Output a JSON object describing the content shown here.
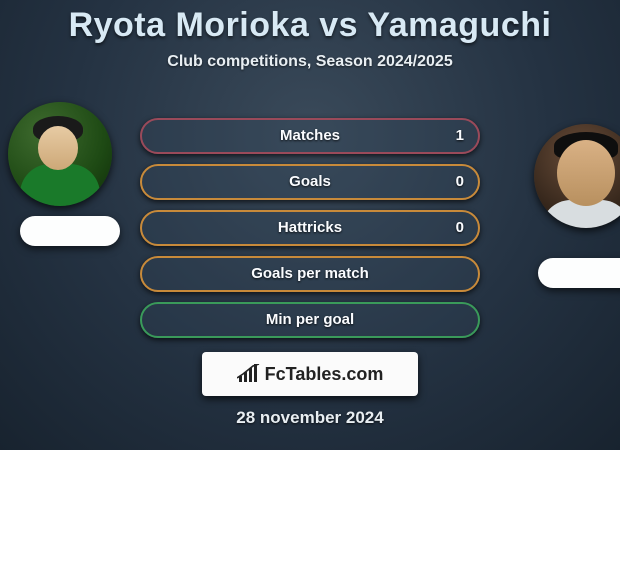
{
  "header": {
    "title": "Ryota Morioka vs Yamaguchi",
    "subtitle": "Club competitions, Season 2024/2025"
  },
  "players": {
    "left": {
      "name": "Ryota Morioka"
    },
    "right": {
      "name": "Yamaguchi"
    }
  },
  "stats": [
    {
      "label": "Matches",
      "value_right": "1",
      "border_color": "#9a4a5a"
    },
    {
      "label": "Goals",
      "value_right": "0",
      "border_color": "#c88a3a"
    },
    {
      "label": "Hattricks",
      "value_right": "0",
      "border_color": "#c88a3a"
    },
    {
      "label": "Goals per match",
      "value_right": "",
      "border_color": "#c88a3a"
    },
    {
      "label": "Min per goal",
      "value_right": "",
      "border_color": "#3a9a5a"
    }
  ],
  "branding": {
    "logo_text_prefix": "Fc",
    "logo_text_main": "Tables",
    "logo_text_suffix": ".com"
  },
  "footer": {
    "date": "28 november 2024"
  },
  "style": {
    "title_color": "#d8e9f4",
    "text_color": "#e8eef2",
    "pill_fill": "rgba(50,70,90,0.25)"
  }
}
